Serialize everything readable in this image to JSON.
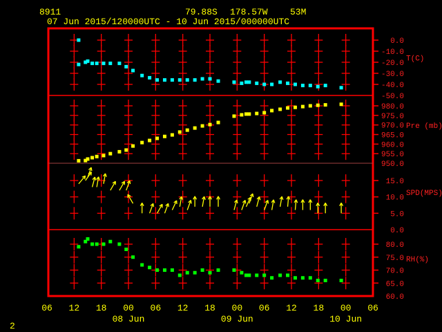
{
  "header": {
    "station": "8911",
    "latitude": "79.88S",
    "longitude": "178.57W",
    "elevation": "53M",
    "period": "07 Jun 2015/120000UTC - 10 Jun 2015/000000UTC"
  },
  "page_number": "2",
  "colors": {
    "frame": "#ff0000",
    "temperature": "#00ffff",
    "pressure": "#ffff00",
    "wind": "#ffff00",
    "humidity": "#00ff00",
    "text": "#ffff00",
    "axis_text": "#ff2020"
  },
  "chart_data": [
    {
      "type": "scatter",
      "ylabel": "T(C)",
      "ylim": [
        -50,
        0
      ],
      "yticks": [
        "0.0",
        "-10.0",
        "-20.0",
        "-30.0",
        "-40.0",
        "-50.0"
      ],
      "series": [
        {
          "values": [
            -22,
            -20,
            -19,
            -21,
            -21,
            -21,
            -21,
            -21,
            -24,
            -27.5,
            -32,
            -34,
            -36,
            -36,
            -36,
            -36,
            -36,
            -36,
            -35,
            -35,
            -37,
            -38,
            -39,
            -38,
            -38,
            -39,
            -40,
            -40,
            -38,
            -39,
            -40,
            -41,
            -41,
            -42,
            -41,
            -43
          ]
        }
      ],
      "extra_points": [
        [
          "2015-06-07T13:00",
          0.0
        ]
      ]
    },
    {
      "type": "scatter",
      "ylabel": "Pre (mb)",
      "ylim": [
        950,
        985
      ],
      "yticks": [
        "950.0",
        "955.0",
        "960.0",
        "965.0",
        "970.0",
        "975.0",
        "980.0"
      ],
      "series": [
        {
          "values": [
            951.3,
            951.4,
            952.2,
            952.9,
            953.5,
            954,
            955,
            956,
            956.9,
            959,
            960.8,
            961.9,
            963,
            964,
            964.8,
            966.3,
            967.3,
            968.4,
            969.5,
            970.2,
            971.3,
            974.6,
            975.3,
            975.7,
            975.7,
            976,
            976.4,
            977.5,
            978.2,
            978.9,
            979.2,
            979.6,
            980,
            980.3,
            980.5,
            980.8
          ]
        }
      ]
    },
    {
      "type": "vector",
      "ylabel": "SPD(MPS)",
      "ylim": [
        0,
        20
      ],
      "yticks": [
        "0.0",
        "5.0",
        "10.0",
        "15.0"
      ],
      "series": [
        {
          "values": [
            14,
            15,
            16,
            13,
            13,
            14,
            12,
            12,
            12,
            8,
            5,
            5,
            5,
            5,
            6,
            7,
            6,
            7,
            7,
            7,
            7,
            6,
            6,
            7,
            8,
            7,
            6,
            6,
            7,
            7,
            6,
            6,
            6,
            5,
            5,
            5
          ],
          "direction_deg": [
            40,
            35,
            20,
            15,
            10,
            10,
            30,
            30,
            20,
            330,
            0,
            20,
            30,
            20,
            25,
            10,
            20,
            0,
            10,
            0,
            0,
            15,
            20,
            25,
            20,
            15,
            20,
            10,
            10,
            5,
            5,
            0,
            0,
            0,
            0,
            0
          ]
        }
      ]
    },
    {
      "type": "scatter",
      "ylabel": "RH(%)",
      "ylim": [
        60,
        85
      ],
      "yticks": [
        "60.0",
        "65.0",
        "70.0",
        "75.0",
        "80.0"
      ],
      "series": [
        {
          "values": [
            79,
            81,
            82,
            80,
            80,
            80,
            81,
            80,
            78,
            75,
            72,
            71,
            70,
            70,
            70,
            68,
            69,
            69,
            70,
            69,
            70,
            70,
            69,
            68,
            68,
            68,
            68,
            67,
            68,
            68,
            67,
            67,
            67,
            66,
            66,
            66
          ]
        }
      ]
    }
  ],
  "times": [
    "2015-06-07T13:00",
    "2015-06-07T14:30",
    "2015-06-07T15:00",
    "2015-06-07T16:00",
    "2015-06-07T17:00",
    "2015-06-07T18:30",
    "2015-06-07T20:00",
    "2015-06-07T22:00",
    "2015-06-07T23:30",
    "2015-06-08T01:00",
    "2015-06-08T03:00",
    "2015-06-08T04:40",
    "2015-06-08T06:20",
    "2015-06-08T08:00",
    "2015-06-08T09:40",
    "2015-06-08T11:20",
    "2015-06-08T13:00",
    "2015-06-08T14:40",
    "2015-06-08T16:20",
    "2015-06-08T18:00",
    "2015-06-08T19:50",
    "2015-06-08T23:20",
    "2015-06-09T01:00",
    "2015-06-09T02:00",
    "2015-06-09T02:40",
    "2015-06-09T04:20",
    "2015-06-09T06:00",
    "2015-06-09T07:40",
    "2015-06-09T09:30",
    "2015-06-09T11:10",
    "2015-06-09T12:50",
    "2015-06-09T14:30",
    "2015-06-09T16:10",
    "2015-06-09T17:50",
    "2015-06-09T19:30",
    "2015-06-09T23:00"
  ],
  "x_axis": {
    "start": "2015-06-07T06:00",
    "end": "2015-06-10T06:00",
    "tick_labels": [
      "06",
      "12",
      "18",
      "00",
      "06",
      "12",
      "18",
      "00",
      "06",
      "12",
      "18",
      "00",
      "06"
    ],
    "date_labels": [
      {
        "label": "08 Jun",
        "at": "2015-06-08T00:00"
      },
      {
        "label": "09 Jun",
        "at": "2015-06-09T00:00"
      },
      {
        "label": "10 Jun",
        "at": "2015-06-10T00:00"
      }
    ]
  }
}
